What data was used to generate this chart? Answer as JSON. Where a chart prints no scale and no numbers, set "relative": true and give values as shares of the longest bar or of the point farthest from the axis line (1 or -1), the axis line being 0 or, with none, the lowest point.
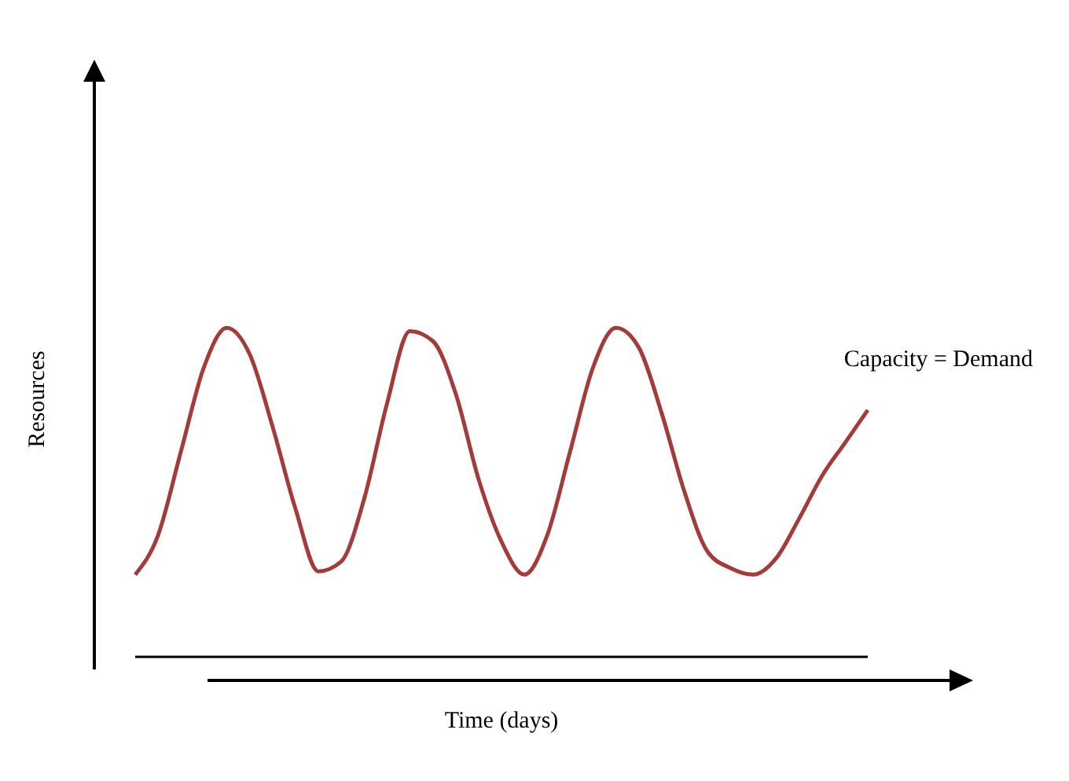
{
  "chart_data": {
    "type": "line",
    "relative": true,
    "xlabel": "Time (days)",
    "ylabel": "Resources",
    "marker": "none",
    "line_style": "solid",
    "categories": [
      null,
      null,
      null,
      null,
      null,
      null,
      null,
      null,
      null,
      null,
      null,
      null,
      null,
      null,
      null,
      null,
      null,
      null,
      null,
      null,
      null,
      null,
      null,
      null,
      null,
      null,
      null,
      null,
      null,
      null,
      null,
      null,
      null
    ],
    "series": [
      {
        "name": "Capacity = Demand",
        "color": "#a33b3b",
        "values": [
          0.25,
          0.37,
          0.625,
          0.88,
          1.0,
          0.92,
          0.7,
          0.45,
          0.26,
          0.29,
          0.48,
          0.77,
          0.99,
          0.96,
          0.8,
          0.54,
          0.35,
          0.25,
          0.37,
          0.625,
          0.88,
          1.0,
          0.94,
          0.74,
          0.5,
          0.32,
          0.27,
          0.25,
          0.3,
          0.42,
          0.55,
          0.65,
          0.75
        ]
      }
    ]
  }
}
